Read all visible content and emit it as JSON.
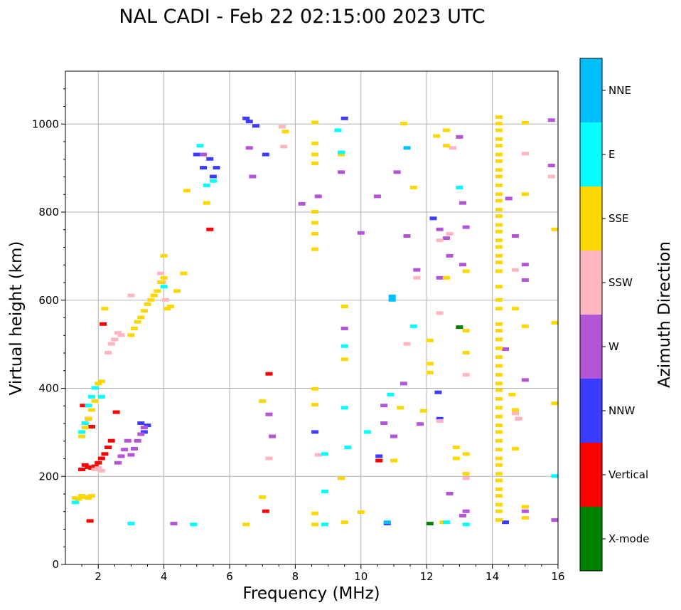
{
  "chart_data": {
    "type": "scatter",
    "title": "NAL CADI - Feb 22 02:15:00 2023 UTC",
    "xlabel": "Frequency (MHz)",
    "ylabel": "Virtual height (km)",
    "xlim": [
      1,
      16
    ],
    "ylim": [
      0,
      1120
    ],
    "xticks": [
      2,
      4,
      6,
      8,
      10,
      12,
      14,
      16
    ],
    "yticks": [
      0,
      200,
      400,
      600,
      800,
      1000
    ],
    "grid": true,
    "colorbar": {
      "label": "Azimuth Direction",
      "categories": [
        {
          "name": "X-mode",
          "color": "#008000"
        },
        {
          "name": "Vertical",
          "color": "#ff0000"
        },
        {
          "name": "NNW",
          "color": "#3c3cff"
        },
        {
          "name": "W",
          "color": "#b455d8"
        },
        {
          "name": "SSW",
          "color": "#ffb6c1"
        },
        {
          "name": "SSE",
          "color": "#ffd700"
        },
        {
          "name": "E",
          "color": "#00ffff"
        },
        {
          "name": "NNE",
          "color": "#00bfff"
        }
      ]
    },
    "series": [
      {
        "name": "X-mode",
        "points": [
          [
            13.0,
            538
          ],
          [
            12.1,
            92
          ]
        ]
      },
      {
        "name": "Vertical",
        "points": [
          [
            1.5,
            215
          ],
          [
            1.6,
            225
          ],
          [
            1.7,
            220
          ],
          [
            1.8,
            218
          ],
          [
            1.9,
            222
          ],
          [
            2.0,
            230
          ],
          [
            2.1,
            240
          ],
          [
            2.2,
            250
          ],
          [
            2.3,
            265
          ],
          [
            2.4,
            280
          ],
          [
            2.55,
            345
          ],
          [
            1.7,
            330
          ],
          [
            1.8,
            312
          ],
          [
            1.55,
            360
          ],
          [
            1.75,
            98
          ],
          [
            2.15,
            545
          ],
          [
            5.4,
            760
          ],
          [
            7.2,
            432
          ],
          [
            10.55,
            235
          ],
          [
            7.1,
            120
          ]
        ]
      },
      {
        "name": "NNW",
        "points": [
          [
            3.3,
            320
          ],
          [
            3.4,
            300
          ],
          [
            3.5,
            315
          ],
          [
            5.0,
            930
          ],
          [
            5.2,
            900
          ],
          [
            5.4,
            920
          ],
          [
            5.5,
            880
          ],
          [
            5.6,
            900
          ],
          [
            6.5,
            1012
          ],
          [
            6.6,
            1005
          ],
          [
            6.8,
            995
          ],
          [
            7.1,
            930
          ],
          [
            8.6,
            300
          ],
          [
            9.5,
            1012
          ],
          [
            10.55,
            245
          ],
          [
            10.8,
            92
          ],
          [
            12.2,
            785
          ],
          [
            12.35,
            390
          ],
          [
            12.4,
            330
          ],
          [
            14.4,
            95
          ]
        ]
      },
      {
        "name": "W",
        "points": [
          [
            2.6,
            230
          ],
          [
            2.7,
            245
          ],
          [
            2.8,
            260
          ],
          [
            2.9,
            280
          ],
          [
            3.0,
            248
          ],
          [
            3.1,
            262
          ],
          [
            3.2,
            280
          ],
          [
            3.3,
            295
          ],
          [
            3.4,
            310
          ],
          [
            4.3,
            92
          ],
          [
            5.2,
            930
          ],
          [
            6.6,
            945
          ],
          [
            6.7,
            880
          ],
          [
            7.2,
            340
          ],
          [
            7.3,
            290
          ],
          [
            8.2,
            818
          ],
          [
            8.7,
            835
          ],
          [
            9.4,
            890
          ],
          [
            9.5,
            535
          ],
          [
            10.0,
            752
          ],
          [
            10.5,
            835
          ],
          [
            10.7,
            360
          ],
          [
            10.7,
            320
          ],
          [
            11.0,
            290
          ],
          [
            11.1,
            890
          ],
          [
            11.3,
            410
          ],
          [
            11.4,
            745
          ],
          [
            11.7,
            668
          ],
          [
            11.8,
            318
          ],
          [
            12.4,
            760
          ],
          [
            12.6,
            740
          ],
          [
            12.7,
            700
          ],
          [
            13.0,
            970
          ],
          [
            13.1,
            820
          ],
          [
            13.2,
            765
          ],
          [
            13.1,
            680
          ],
          [
            13.2,
            120
          ],
          [
            14.5,
            830
          ],
          [
            14.7,
            745
          ],
          [
            14.8,
            330
          ],
          [
            15.0,
            680
          ],
          [
            15.0,
            645
          ],
          [
            15.0,
            418
          ],
          [
            15.0,
            120
          ],
          [
            15.8,
            1008
          ],
          [
            15.8,
            905
          ],
          [
            15.9,
            100
          ],
          [
            14.4,
            488
          ],
          [
            13.1,
            110
          ],
          [
            12.7,
            160
          ],
          [
            12.4,
            650
          ]
        ]
      },
      {
        "name": "SSW",
        "points": [
          [
            1.9,
            215
          ],
          [
            2.0,
            218
          ],
          [
            2.1,
            212
          ],
          [
            2.3,
            480
          ],
          [
            2.4,
            500
          ],
          [
            2.5,
            510
          ],
          [
            2.6,
            525
          ],
          [
            2.7,
            520
          ],
          [
            3.0,
            610
          ],
          [
            3.9,
            660
          ],
          [
            3.95,
            640
          ],
          [
            4.05,
            600
          ],
          [
            7.6,
            993
          ],
          [
            7.65,
            948
          ],
          [
            7.2,
            240
          ],
          [
            8.7,
            248
          ],
          [
            11.4,
            500
          ],
          [
            11.7,
            650
          ],
          [
            12.4,
            735
          ],
          [
            12.4,
            570
          ],
          [
            12.4,
            325
          ],
          [
            12.7,
            750
          ],
          [
            12.8,
            945
          ],
          [
            13.2,
            430
          ],
          [
            14.7,
            668
          ],
          [
            14.7,
            342
          ],
          [
            14.8,
            330
          ],
          [
            15.0,
            932
          ],
          [
            15.8,
            880
          ],
          [
            13.2,
            195
          ]
        ]
      },
      {
        "name": "SSE",
        "points": [
          [
            1.3,
            150
          ],
          [
            1.4,
            148
          ],
          [
            1.5,
            155
          ],
          [
            1.6,
            152
          ],
          [
            1.7,
            150
          ],
          [
            1.8,
            155
          ],
          [
            1.5,
            290
          ],
          [
            1.6,
            310
          ],
          [
            1.7,
            330
          ],
          [
            1.8,
            350
          ],
          [
            1.9,
            370
          ],
          [
            2.0,
            410
          ],
          [
            2.1,
            415
          ],
          [
            2.2,
            580
          ],
          [
            3.0,
            520
          ],
          [
            3.1,
            535
          ],
          [
            3.2,
            550
          ],
          [
            3.3,
            560
          ],
          [
            3.4,
            575
          ],
          [
            3.5,
            590
          ],
          [
            3.6,
            600
          ],
          [
            3.7,
            610
          ],
          [
            3.8,
            620
          ],
          [
            3.9,
            640
          ],
          [
            4.0,
            650
          ],
          [
            4.0,
            700
          ],
          [
            4.1,
            580
          ],
          [
            4.2,
            585
          ],
          [
            4.4,
            620
          ],
          [
            4.6,
            660
          ],
          [
            4.7,
            848
          ],
          [
            5.3,
            820
          ],
          [
            6.5,
            90
          ],
          [
            7.0,
            370
          ],
          [
            7.0,
            152
          ],
          [
            7.7,
            982
          ],
          [
            8.6,
            1003
          ],
          [
            8.6,
            955
          ],
          [
            8.6,
            930
          ],
          [
            8.6,
            910
          ],
          [
            8.6,
            800
          ],
          [
            8.6,
            775
          ],
          [
            8.6,
            750
          ],
          [
            8.6,
            715
          ],
          [
            8.6,
            398
          ],
          [
            8.6,
            362
          ],
          [
            8.6,
            115
          ],
          [
            8.6,
            90
          ],
          [
            9.4,
            930
          ],
          [
            9.5,
            585
          ],
          [
            9.5,
            465
          ],
          [
            9.4,
            195
          ],
          [
            9.5,
            95
          ],
          [
            10.0,
            118
          ],
          [
            11.0,
            235
          ],
          [
            11.2,
            355
          ],
          [
            11.3,
            1000
          ],
          [
            11.6,
            855
          ],
          [
            11.9,
            348
          ],
          [
            12.1,
            508
          ],
          [
            12.1,
            455
          ],
          [
            12.1,
            435
          ],
          [
            12.3,
            972
          ],
          [
            12.6,
            985
          ],
          [
            12.6,
            950
          ],
          [
            12.6,
            650
          ],
          [
            12.5,
            95
          ],
          [
            12.9,
            265
          ],
          [
            12.9,
            240
          ],
          [
            13.2,
            665
          ],
          [
            13.2,
            530
          ],
          [
            13.2,
            480
          ],
          [
            13.2,
            250
          ],
          [
            13.2,
            205
          ],
          [
            14.2,
            1015
          ],
          [
            14.2,
            1000
          ],
          [
            14.2,
            985
          ],
          [
            14.2,
            965
          ],
          [
            14.2,
            950
          ],
          [
            14.2,
            930
          ],
          [
            14.2,
            915
          ],
          [
            14.2,
            895
          ],
          [
            14.2,
            880
          ],
          [
            14.2,
            860
          ],
          [
            14.2,
            840
          ],
          [
            14.2,
            825
          ],
          [
            14.2,
            805
          ],
          [
            14.2,
            790
          ],
          [
            14.2,
            770
          ],
          [
            14.2,
            755
          ],
          [
            14.2,
            735
          ],
          [
            14.2,
            720
          ],
          [
            14.2,
            700
          ],
          [
            14.2,
            685
          ],
          [
            14.2,
            665
          ],
          [
            14.2,
            630
          ],
          [
            14.2,
            600
          ],
          [
            14.2,
            580
          ],
          [
            14.2,
            545
          ],
          [
            14.2,
            530
          ],
          [
            14.2,
            510
          ],
          [
            14.2,
            490
          ],
          [
            14.2,
            470
          ],
          [
            14.2,
            450
          ],
          [
            14.2,
            430
          ],
          [
            14.2,
            410
          ],
          [
            14.2,
            395
          ],
          [
            14.2,
            375
          ],
          [
            14.2,
            355
          ],
          [
            14.2,
            335
          ],
          [
            14.2,
            315
          ],
          [
            14.2,
            300
          ],
          [
            14.2,
            280
          ],
          [
            14.2,
            260
          ],
          [
            14.2,
            240
          ],
          [
            14.2,
            225
          ],
          [
            14.2,
            205
          ],
          [
            14.2,
            190
          ],
          [
            14.2,
            170
          ],
          [
            14.2,
            155
          ],
          [
            14.2,
            135
          ],
          [
            14.2,
            120
          ],
          [
            14.2,
            100
          ],
          [
            14.6,
            385
          ],
          [
            14.7,
            580
          ],
          [
            14.7,
            350
          ],
          [
            14.7,
            262
          ],
          [
            15.0,
            1002
          ],
          [
            15.0,
            840
          ],
          [
            15.0,
            540
          ],
          [
            15.0,
            130
          ],
          [
            15.0,
            105
          ],
          [
            15.9,
            760
          ],
          [
            15.9,
            548
          ],
          [
            15.9,
            365
          ]
        ]
      },
      {
        "name": "E",
        "points": [
          [
            1.3,
            140
          ],
          [
            1.5,
            300
          ],
          [
            1.6,
            320
          ],
          [
            1.7,
            360
          ],
          [
            1.8,
            380
          ],
          [
            1.9,
            400
          ],
          [
            2.1,
            380
          ],
          [
            3.0,
            92
          ],
          [
            4.0,
            630
          ],
          [
            4.9,
            90
          ],
          [
            5.1,
            950
          ],
          [
            5.3,
            860
          ],
          [
            5.5,
            870
          ],
          [
            8.9,
            250
          ],
          [
            8.9,
            165
          ],
          [
            8.9,
            90
          ],
          [
            9.3,
            985
          ],
          [
            9.4,
            935
          ],
          [
            9.5,
            355
          ],
          [
            9.6,
            265
          ],
          [
            9.5,
            495
          ],
          [
            10.2,
            300
          ],
          [
            10.9,
            385
          ],
          [
            11.6,
            540
          ],
          [
            12.6,
            95
          ],
          [
            13.0,
            855
          ],
          [
            13.2,
            90
          ],
          [
            15.9,
            200
          ]
        ]
      },
      {
        "name": "NNE",
        "points": [
          [
            10.95,
            608
          ],
          [
            10.95,
            600
          ],
          [
            11.4,
            945
          ],
          [
            10.8,
            95
          ]
        ]
      }
    ]
  }
}
